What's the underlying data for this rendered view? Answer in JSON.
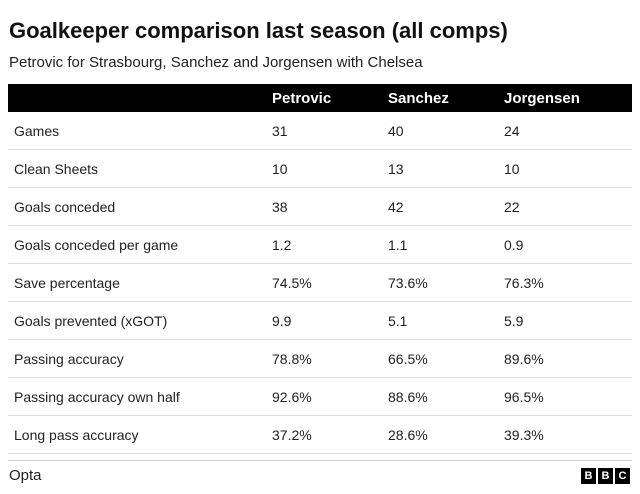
{
  "title": "Goalkeeper comparison last season (all comps)",
  "subtitle": "Petrovic for Strasbourg, Sanchez and Jorgensen with Chelsea",
  "source": "Opta",
  "logo": [
    "B",
    "B",
    "C"
  ],
  "colors": {
    "header_bg": "#000000",
    "header_text": "#ffffff",
    "row_divider": "#dddddd"
  },
  "chart_data": {
    "type": "table",
    "columns": [
      "",
      "Petrovic",
      "Sanchez",
      "Jorgensen"
    ],
    "rows": [
      {
        "label": "Games",
        "values": [
          "31",
          "40",
          "24"
        ]
      },
      {
        "label": "Clean Sheets",
        "values": [
          "10",
          "13",
          "10"
        ]
      },
      {
        "label": "Goals conceded",
        "values": [
          "38",
          "42",
          "22"
        ]
      },
      {
        "label": "Goals conceded per game",
        "values": [
          "1.2",
          "1.1",
          "0.9"
        ]
      },
      {
        "label": "Save percentage",
        "values": [
          "74.5%",
          "73.6%",
          "76.3%"
        ]
      },
      {
        "label": "Goals prevented (xGOT)",
        "values": [
          "9.9",
          "5.1",
          "5.9"
        ]
      },
      {
        "label": "Passing accuracy",
        "values": [
          "78.8%",
          "66.5%",
          "89.6%"
        ]
      },
      {
        "label": "Passing accuracy own half",
        "values": [
          "92.6%",
          "88.6%",
          "96.5%"
        ]
      },
      {
        "label": "Long pass accuracy",
        "values": [
          "37.2%",
          "28.6%",
          "39.3%"
        ]
      }
    ]
  }
}
